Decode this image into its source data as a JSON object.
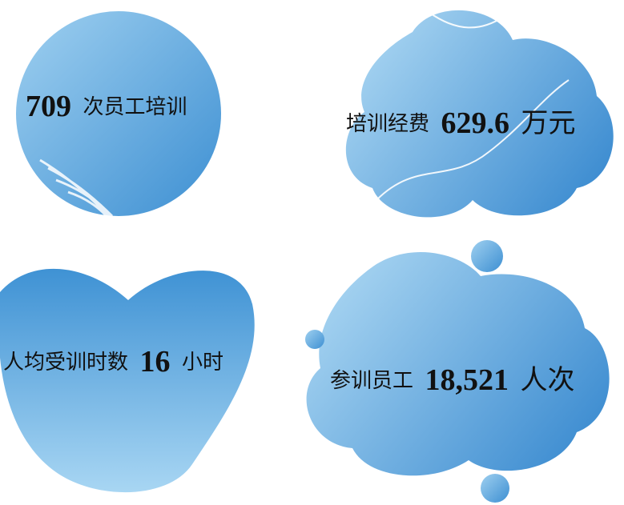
{
  "items": [
    {
      "number": "709",
      "suffix": "次员工培训"
    },
    {
      "prefix": "培训经费",
      "number": "629.6",
      "suffix": "万元"
    },
    {
      "prefix": "人均受训时数",
      "number": "16",
      "suffix": "小时"
    },
    {
      "prefix": "参训员工",
      "number": "18,521",
      "suffix": "人次"
    }
  ]
}
